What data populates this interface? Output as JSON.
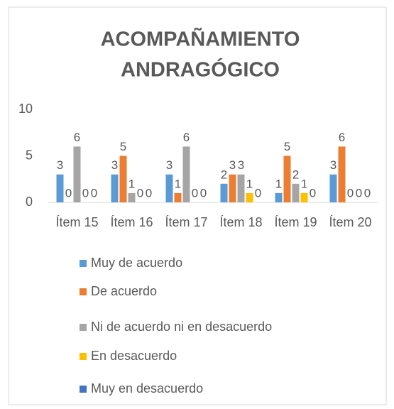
{
  "chart_data": {
    "type": "bar",
    "title_lines": [
      "ACOMPAÑAMIENTO",
      "ANDRAGÓGICO"
    ],
    "categories": [
      "Ítem 15",
      "Ítem 16",
      "Ítem 17",
      "Ítem 18",
      "Ítem 19",
      "Ítem 20"
    ],
    "series": [
      {
        "name": "Muy de acuerdo",
        "color": "#5b9bd5",
        "values": [
          3,
          3,
          3,
          2,
          1,
          3
        ]
      },
      {
        "name": "De acuerdo",
        "color": "#ed7d31",
        "values": [
          0,
          5,
          1,
          3,
          5,
          6
        ]
      },
      {
        "name": "Ni de acuerdo ni en desacuerdo",
        "color": "#a5a5a5",
        "values": [
          6,
          1,
          6,
          3,
          2,
          0
        ]
      },
      {
        "name": "En desacuerdo",
        "color": "#ffc000",
        "values": [
          0,
          0,
          0,
          1,
          1,
          0
        ]
      },
      {
        "name": "Muy en desacuerdo",
        "color": "#4472c4",
        "values": [
          0,
          0,
          0,
          0,
          0,
          0
        ]
      }
    ],
    "ylim": [
      0,
      10
    ],
    "yticks": [
      0,
      5,
      10
    ],
    "grid": false,
    "legend": "bottom"
  }
}
